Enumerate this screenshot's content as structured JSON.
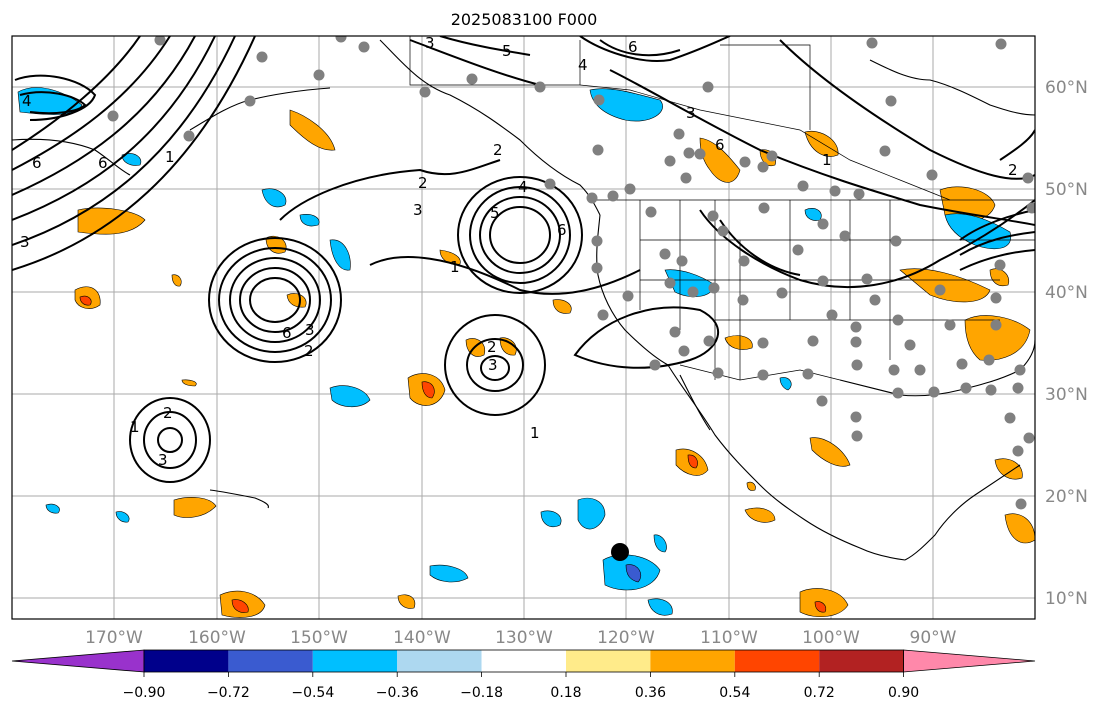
{
  "title": "2025083100 F000",
  "latitude_labels": [
    "60°N",
    "50°N",
    "40°N",
    "30°N",
    "20°N",
    "10°N"
  ],
  "longitude_labels": [
    "170°W",
    "160°W",
    "150°W",
    "140°W",
    "130°W",
    "120°W",
    "110°W",
    "100°W",
    "90°W"
  ],
  "colorbar": {
    "tick_labels": [
      "−0.90",
      "−0.72",
      "−0.54",
      "−0.36",
      "−0.18",
      "0.18",
      "0.36",
      "0.54",
      "0.72",
      "0.90"
    ],
    "colors": [
      "#9932cc",
      "#00008b",
      "#3a5bd0",
      "#00bfff",
      "#add8f0",
      "#ffffff",
      "#ffeb8a",
      "#ffa500",
      "#ff4500",
      "#b22222",
      "#ff88aa"
    ]
  },
  "contour_labels": [
    "4",
    "6",
    "3",
    "6",
    "1",
    "6",
    "3",
    "2",
    "3",
    "2",
    "5",
    "4",
    "6",
    "1",
    "3",
    "5",
    "6",
    "4",
    "3",
    "2",
    "6",
    "2",
    "1",
    "2",
    "3",
    "1",
    "3",
    "2",
    "1"
  ],
  "colors": {
    "negative_fill": "#00bfff",
    "positive_fill": "#ffa500",
    "strong_positive_fill": "#ff4500",
    "station_dot": "#808080",
    "marker": "#000000"
  }
}
